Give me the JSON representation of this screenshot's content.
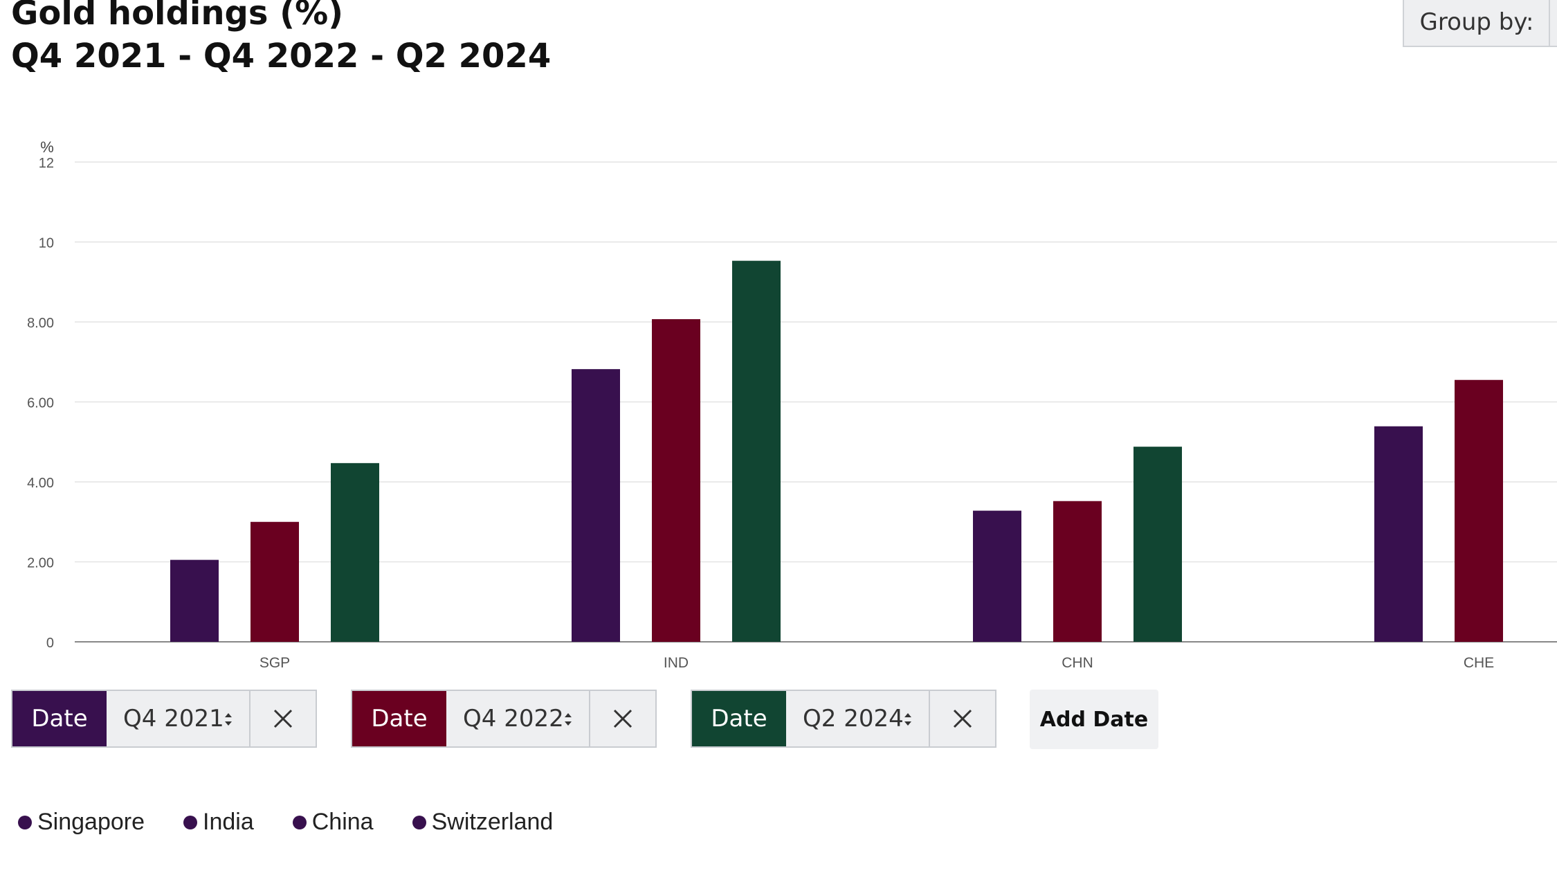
{
  "title": {
    "line1": "Gold holdings (%)",
    "line2": "Q4 2021 - Q4 2022 - Q2 2024"
  },
  "group_by": {
    "label": "Group by:"
  },
  "colors": {
    "q4_2021": "#38104e",
    "q4_2022": "#6a0020",
    "q2_2024": "#114532",
    "grid": "#e3e3e3",
    "axis": "#888888"
  },
  "chart_data": {
    "type": "bar",
    "title": "Gold holdings (%)",
    "ylabel": "%",
    "xlabel": "",
    "ylim": [
      0,
      12
    ],
    "yticks": [
      "0",
      "2.00",
      "4.00",
      "6.00",
      "8.00",
      "10",
      "12"
    ],
    "categories": [
      "SGP",
      "IND",
      "CHN",
      "CHE"
    ],
    "series": [
      {
        "name": "Q4 2021",
        "values": [
          2.05,
          6.82,
          3.28,
          5.39
        ]
      },
      {
        "name": "Q4 2022",
        "values": [
          3.0,
          8.07,
          3.52,
          6.55
        ]
      },
      {
        "name": "Q2 2024",
        "values": [
          4.47,
          9.53,
          4.88,
          null
        ]
      }
    ],
    "grid": true
  },
  "date_selectors": [
    {
      "label": "Date",
      "value": "Q4 2021",
      "color": "#38104e"
    },
    {
      "label": "Date",
      "value": "Q4 2022",
      "color": "#6a0020"
    },
    {
      "label": "Date",
      "value": "Q2 2024",
      "color": "#114532"
    }
  ],
  "add_date_label": "Add Date",
  "legend": [
    {
      "label": "Singapore",
      "color": "#38104e"
    },
    {
      "label": "India",
      "color": "#38104e"
    },
    {
      "label": "China",
      "color": "#38104e"
    },
    {
      "label": "Switzerland",
      "color": "#38104e"
    }
  ]
}
